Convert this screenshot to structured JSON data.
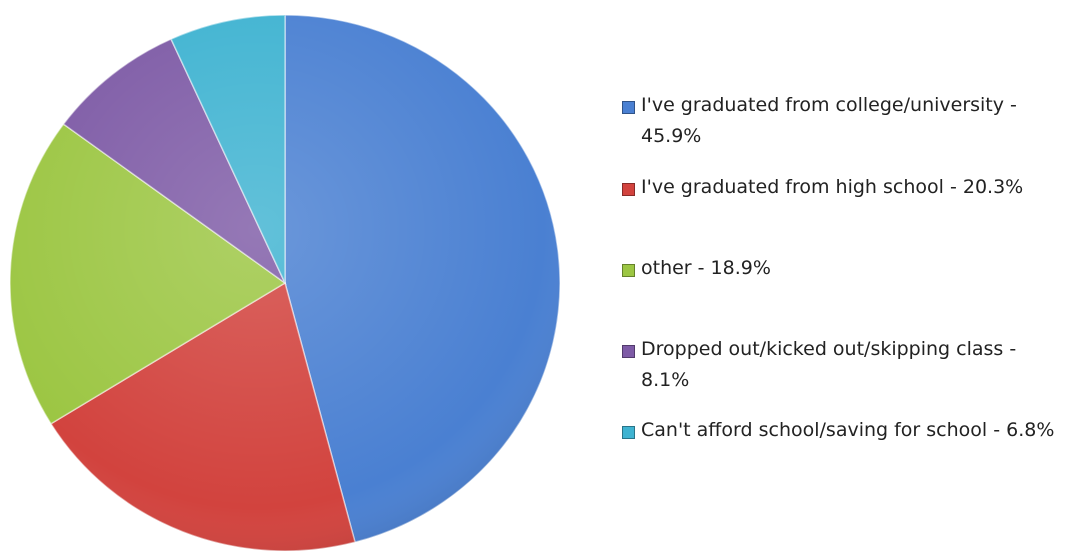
{
  "chart_data": {
    "type": "pie",
    "categories": [
      "I've graduated from college/university - 45.9%",
      "I've graduated from high school - 20.3%",
      "other - 18.9%",
      "Dropped out/kicked out/skipping class - 8.1%",
      "Can't afford school/saving for school - 6.8%"
    ],
    "values": [
      45.9,
      20.3,
      18.9,
      8.1,
      6.8
    ],
    "colors": [
      "#4a80d2",
      "#d2433e",
      "#9cc643",
      "#7e5ba6",
      "#3fb3d1"
    ],
    "legend": "right"
  }
}
